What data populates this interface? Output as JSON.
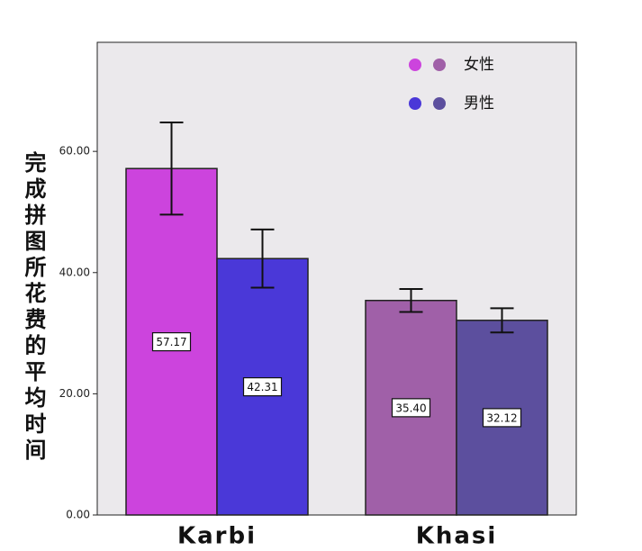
{
  "chart_data": {
    "type": "bar",
    "y_label": "完成拼图所花费的平均时间",
    "categories": [
      "Karbi",
      "Khasi"
    ],
    "series": [
      {
        "name": "女性",
        "colors": [
          "#cc44dd",
          "#a060a8"
        ],
        "values": [
          57.17,
          35.4
        ],
        "value_labels": [
          "57.17",
          "35.40"
        ],
        "errors": [
          7.6,
          1.9
        ]
      },
      {
        "name": "男性",
        "colors": [
          "#4a38d8",
          "#5c4f9e"
        ],
        "values": [
          42.31,
          32.12
        ],
        "value_labels": [
          "42.31",
          "32.12"
        ],
        "errors": [
          4.8,
          2.0
        ]
      }
    ],
    "ylim": [
      0,
      78
    ],
    "yticks": [
      {
        "value": 0,
        "label": "0.00"
      },
      {
        "value": 20,
        "label": "20.00"
      },
      {
        "value": 40,
        "label": "40.00"
      },
      {
        "value": 60,
        "label": "60.00"
      }
    ],
    "background": "#ebe9ec"
  }
}
